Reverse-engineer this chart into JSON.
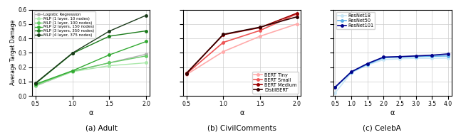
{
  "adult": {
    "alpha": [
      0.5,
      1.0,
      1.5,
      2.0
    ],
    "series": [
      {
        "label": "Logistic Regression",
        "color": "#b0b0b0",
        "values": [
          0.068,
          0.17,
          0.23,
          0.29
        ],
        "lw": 1.0
      },
      {
        "label": "MLP (1 layer, 10 nodes)",
        "color": "#aae8aa",
        "values": [
          0.072,
          0.168,
          0.21,
          0.23
        ],
        "lw": 1.0
      },
      {
        "label": "MLP (1 layer, 100 nodes)",
        "color": "#66cc66",
        "values": [
          0.076,
          0.172,
          0.23,
          0.278
        ],
        "lw": 1.0
      },
      {
        "label": "MLP (2 layers, 150 nodes)",
        "color": "#33aa33",
        "values": [
          0.082,
          0.175,
          0.285,
          0.378
        ],
        "lw": 1.0
      },
      {
        "label": "MLP (3 layers, 350 nodes)",
        "color": "#1a7a1a",
        "values": [
          0.086,
          0.295,
          0.415,
          0.452
        ],
        "lw": 1.0
      },
      {
        "label": "MLP (4 layer, 375 nodes)",
        "color": "#1a3a1a",
        "values": [
          0.09,
          0.298,
          0.45,
          0.56
        ],
        "lw": 1.0
      }
    ],
    "xlim": [
      0.45,
      2.05
    ],
    "xticks": [
      0.5,
      1.0,
      1.5,
      2.0
    ],
    "ylim": [
      0.0,
      0.6
    ],
    "yticks": [
      0.0,
      0.1,
      0.2,
      0.3,
      0.4,
      0.5,
      0.6
    ],
    "ylabel": "Average Target Damage",
    "xlabel": "α",
    "caption": "(a) Adult"
  },
  "civil": {
    "alpha": [
      0.5,
      1.0,
      1.5,
      2.0
    ],
    "series": [
      {
        "label": "BERT Tiny",
        "color": "#ffaaaa",
        "values": [
          0.148,
          0.308,
          0.415,
          0.5
        ],
        "lw": 1.2
      },
      {
        "label": "BERT Small",
        "color": "#ee5555",
        "values": [
          0.154,
          0.372,
          0.455,
          0.57
        ],
        "lw": 1.2
      },
      {
        "label": "BERT Medium",
        "color": "#990000",
        "values": [
          0.158,
          0.425,
          0.475,
          0.575
        ],
        "lw": 1.2
      },
      {
        "label": "DistilBERT",
        "color": "#330000",
        "values": [
          0.155,
          0.428,
          0.478,
          0.55
        ],
        "lw": 1.2
      }
    ],
    "xlim": [
      0.45,
      2.05
    ],
    "xticks": [
      0.5,
      1.0,
      1.5,
      2.0
    ],
    "ylim": [
      0.0,
      0.6
    ],
    "yticks": [
      0.0,
      0.1,
      0.2,
      0.3,
      0.4,
      0.5,
      0.6
    ],
    "ylabel": "",
    "xlabel": "α",
    "caption": "(b) CivilComments"
  },
  "celeba": {
    "alpha": [
      0.5,
      1.0,
      1.5,
      2.0,
      2.5,
      3.0,
      3.5,
      4.0
    ],
    "series": [
      {
        "label": "ResNet18",
        "color": "#c8e6f5",
        "values": [
          0.022,
          0.162,
          0.215,
          0.252,
          0.258,
          0.262,
          0.262,
          0.263
        ],
        "lw": 1.2
      },
      {
        "label": "ResNet50",
        "color": "#5aaee8",
        "values": [
          0.058,
          0.165,
          0.22,
          0.265,
          0.27,
          0.274,
          0.276,
          0.278
        ],
        "lw": 1.2
      },
      {
        "label": "ResNet101",
        "color": "#00008b",
        "values": [
          0.062,
          0.168,
          0.225,
          0.27,
          0.273,
          0.278,
          0.283,
          0.292
        ],
        "lw": 1.2
      }
    ],
    "xlim": [
      0.45,
      4.1
    ],
    "xticks": [
      0.5,
      1.0,
      1.5,
      2.0,
      2.5,
      3.0,
      3.5,
      4.0
    ],
    "ylim": [
      0.0,
      0.6
    ],
    "yticks": [
      0.0,
      0.1,
      0.2,
      0.3,
      0.4,
      0.5,
      0.6
    ],
    "ylabel": "",
    "xlabel": "α",
    "caption": "(c) CelebA"
  },
  "marker": "o",
  "markersize": 2.5,
  "fig_width": 6.4,
  "fig_height": 1.93
}
